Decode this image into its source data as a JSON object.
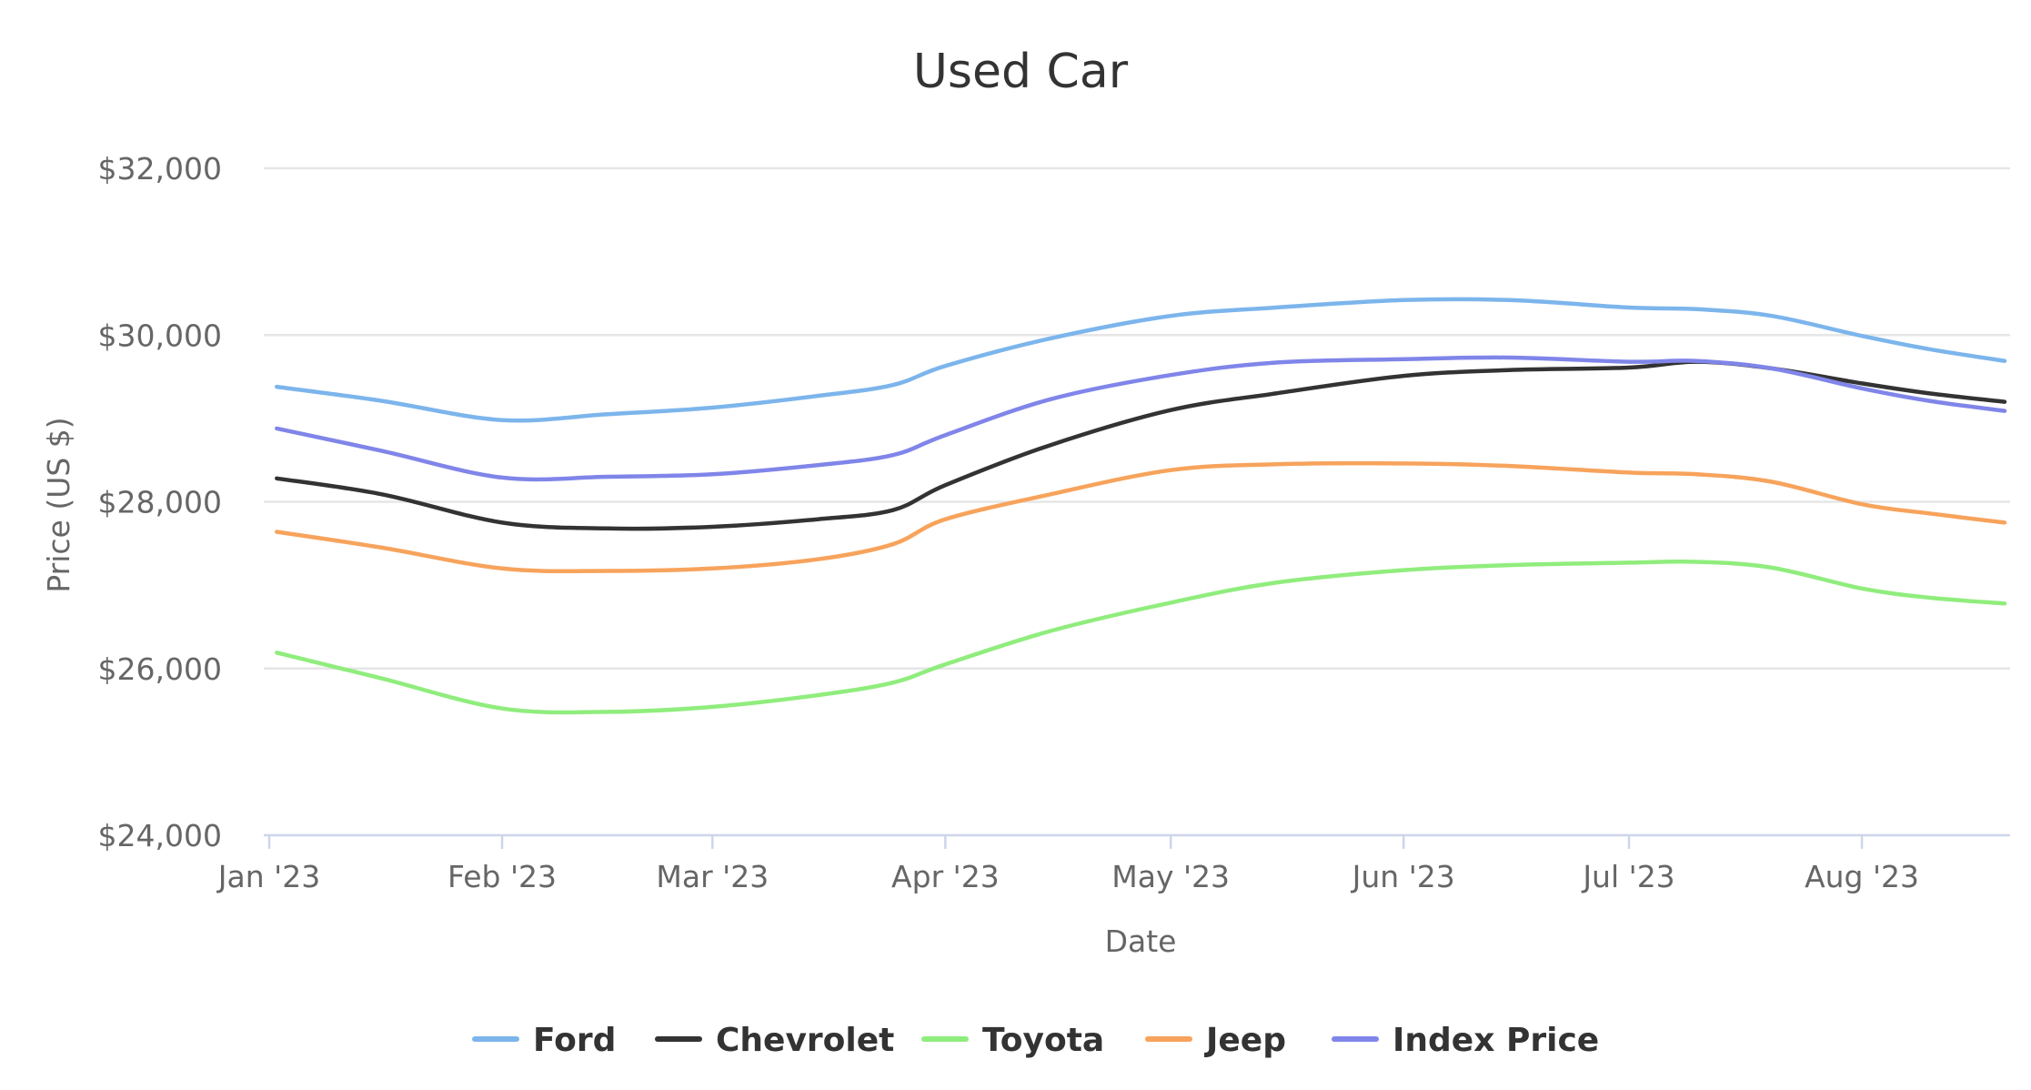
{
  "chart_data": {
    "type": "line",
    "title": "Used Car",
    "xlabel": "Date",
    "ylabel": "Price (US $)",
    "ylim": [
      24000,
      32000
    ],
    "yticks": [
      24000,
      26000,
      28000,
      30000,
      32000
    ],
    "ytick_labels": [
      "$24,000",
      "$26,000",
      "$28,000",
      "$30,000",
      "$32,000"
    ],
    "xlim": [
      "2023-01-01",
      "2023-08-20"
    ],
    "xticks": [
      "2023-01-01",
      "2023-02-01",
      "2023-03-01",
      "2023-04-01",
      "2023-05-01",
      "2023-06-01",
      "2023-07-01",
      "2023-08-01"
    ],
    "xtick_labels": [
      "Jan '23",
      "Feb '23",
      "Mar '23",
      "Apr '23",
      "May '23",
      "Jun '23",
      "Jul '23",
      "Aug '23"
    ],
    "grid": true,
    "legend_position": "bottom",
    "x": [
      "2023-01-02",
      "2023-01-16",
      "2023-02-01",
      "2023-02-15",
      "2023-03-01",
      "2023-03-15",
      "2023-03-25",
      "2023-04-01",
      "2023-04-15",
      "2023-05-01",
      "2023-05-15",
      "2023-06-01",
      "2023-06-15",
      "2023-07-01",
      "2023-07-10",
      "2023-07-20",
      "2023-08-01",
      "2023-08-10",
      "2023-08-20"
    ],
    "series": [
      {
        "name": "Ford",
        "color": "#7cb5ec",
        "values": [
          29380,
          29210,
          28980,
          29050,
          29130,
          29270,
          29400,
          29630,
          29960,
          30230,
          30330,
          30420,
          30420,
          30330,
          30310,
          30230,
          29990,
          29830,
          29690
        ]
      },
      {
        "name": "Chevrolet",
        "color": "#333333",
        "values": [
          28280,
          28090,
          27750,
          27680,
          27700,
          27790,
          27900,
          28200,
          28680,
          29100,
          29300,
          29510,
          29580,
          29610,
          29680,
          29600,
          29420,
          29300,
          29200
        ]
      },
      {
        "name": "Toyota",
        "color": "#90ed7d",
        "values": [
          26190,
          25880,
          25520,
          25480,
          25540,
          25680,
          25830,
          26050,
          26450,
          26790,
          27030,
          27180,
          27240,
          27270,
          27280,
          27210,
          26960,
          26850,
          26780
        ]
      },
      {
        "name": "Jeep",
        "color": "#f7a35c",
        "values": [
          27640,
          27450,
          27200,
          27170,
          27200,
          27310,
          27490,
          27790,
          28090,
          28380,
          28450,
          28460,
          28430,
          28350,
          28330,
          28240,
          27970,
          27860,
          27750
        ]
      },
      {
        "name": "Index Price",
        "color": "#8085e9",
        "values": [
          28880,
          28610,
          28290,
          28300,
          28330,
          28440,
          28560,
          28800,
          29230,
          29520,
          29670,
          29710,
          29730,
          29680,
          29690,
          29600,
          29360,
          29210,
          29090
        ]
      }
    ]
  }
}
